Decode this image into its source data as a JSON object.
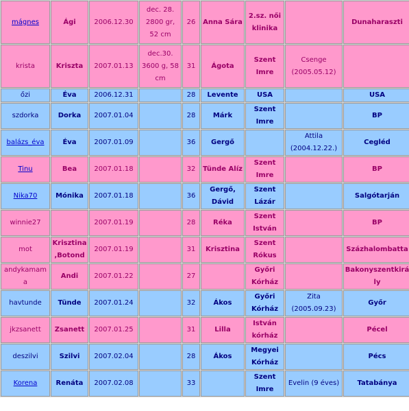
{
  "rows": [
    {
      "color": "pink",
      "h": 63,
      "nick": "mágnes",
      "link": true,
      "mom": "Ági",
      "date": "2006.12.30",
      "birth": "dec. 28. 2800 gr, 52 cm",
      "week": "26",
      "baby": "Anna Sára",
      "hospital": "2.sz. női klinika",
      "sibling": "",
      "city": "Dunaharaszti"
    },
    {
      "color": "pink",
      "h": 63,
      "nick": "krista",
      "link": false,
      "mom": "Kriszta",
      "date": "2007.01.13",
      "birth": "dec.30. 3600 g, 58 cm",
      "week": "31",
      "baby": "Ágota",
      "hospital": "Szent Imre",
      "sibling": "Csenge (2005.05.12)",
      "city": ""
    },
    {
      "color": "blue",
      "h": 18,
      "nick": "őzi",
      "link": false,
      "mom": "Éva",
      "date": "2006.12.31",
      "birth": "",
      "week": "28",
      "baby": "Levente",
      "hospital": "USA",
      "sibling": "",
      "city": "USA"
    },
    {
      "color": "blue",
      "h": 38,
      "nick": "szdorka",
      "link": false,
      "mom": "Dorka",
      "date": "2007.01.04",
      "birth": "",
      "week": "28",
      "baby": "Márk",
      "hospital": "Szent Imre",
      "sibling": "",
      "city": "BP"
    },
    {
      "color": "blue",
      "h": 38,
      "nick": "balázs_éva",
      "link": true,
      "mom": "Éva",
      "date": "2007.01.09",
      "birth": "",
      "week": "36",
      "baby": "Gergő",
      "hospital": "",
      "sibling": "Attila (2004.12.22.)",
      "city": "Cegléd"
    },
    {
      "color": "pink",
      "h": 38,
      "nick": "Tinu",
      "link": true,
      "mom": "Bea",
      "date": "2007.01.18",
      "birth": "",
      "week": "32",
      "baby": "Tünde Alíz",
      "hospital": "Szent Imre",
      "sibling": "",
      "city": "BP"
    },
    {
      "color": "blue",
      "h": 38,
      "nick": "Nika70",
      "link": true,
      "mom": "Mónika",
      "date": "2007.01.18",
      "birth": "",
      "week": "36",
      "baby": "Gergő, Dávid",
      "hospital": "Szent Lázár",
      "sibling": "",
      "city": "Salgótarján"
    },
    {
      "color": "pink",
      "h": 38,
      "nick": "winnie27",
      "link": false,
      "mom": "",
      "date": "2007.01.19",
      "birth": "",
      "week": "28",
      "baby": "Réka",
      "hospital": "Szent István",
      "sibling": "",
      "city": "BP"
    },
    {
      "color": "pink",
      "h": 38,
      "nick": "mot",
      "link": false,
      "mom": "Krisztina ,Botond",
      "date": "2007.01.19",
      "birth": "",
      "week": "31",
      "baby": "Krisztina",
      "hospital": "Szent Rókus",
      "sibling": "",
      "city": "Százhalombatta"
    },
    {
      "color": "pink",
      "h": 38,
      "nick": "andykamama",
      "link": false,
      "mom": "Andi",
      "date": "2007.01.22",
      "birth": "",
      "week": "27",
      "baby": "",
      "hospital": "Győri Kórház",
      "sibling": "",
      "city": "Bakonyszentkirály"
    },
    {
      "color": "blue",
      "h": 38,
      "nick": "havtunde",
      "link": false,
      "mom": "Tünde",
      "date": "2007.01.24",
      "birth": "",
      "week": "32",
      "baby": "Ákos",
      "hospital": "Győri Kórház",
      "sibling": "Zita (2005.09.23)",
      "city": "Győr"
    },
    {
      "color": "pink",
      "h": 38,
      "nick": "jkzsanett",
      "link": false,
      "mom": "Zsanett",
      "date": "2007.01.25",
      "birth": "",
      "week": "31",
      "baby": "Lilla",
      "hospital": "István kórház",
      "sibling": "",
      "city": "Pécel"
    },
    {
      "color": "blue",
      "h": 38,
      "nick": "deszilvi",
      "link": false,
      "mom": "Szilvi",
      "date": "2007.02.04",
      "birth": "",
      "week": "28",
      "baby": "Ákos",
      "hospital": "Megyei Kórház",
      "sibling": "",
      "city": "Pécs"
    },
    {
      "color": "blue",
      "h": 38,
      "nick": "Korena",
      "link": true,
      "mom": "Renáta",
      "date": "2007.02.08",
      "birth": "",
      "week": "33",
      "baby": "",
      "hospital": "Szent Imre",
      "sibling": "Evelin (9 éves)",
      "city": "Tatabánya"
    }
  ]
}
